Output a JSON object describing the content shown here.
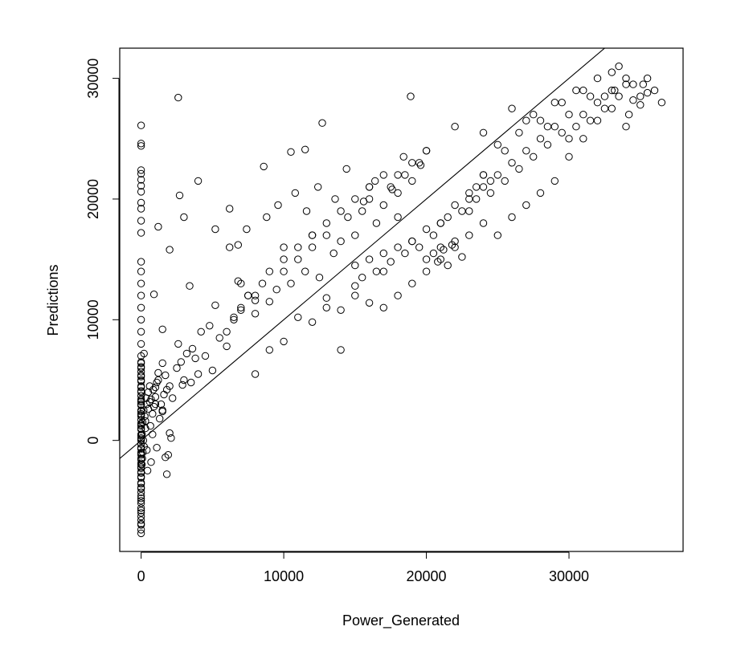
{
  "chart_data": {
    "type": "scatter",
    "title": "",
    "xlabel": "Power_Generated",
    "ylabel": "Predictions",
    "xlim": [
      -1500,
      38000
    ],
    "ylim": [
      -9200,
      32500
    ],
    "x_ticks": [
      0,
      10000,
      20000,
      30000
    ],
    "x_tick_labels": [
      "0",
      "10000",
      "20000",
      "30000"
    ],
    "y_ticks": [
      0,
      10000,
      20000,
      30000
    ],
    "y_tick_labels": [
      "0",
      "10000",
      "20000",
      "30000"
    ],
    "grid": false,
    "legend": "none",
    "marker": "open-circle",
    "reference_line": {
      "slope": 1,
      "intercept": 0
    },
    "colors": {
      "points": "#000000",
      "line": "#000000",
      "background": "#ffffff"
    },
    "series": [
      {
        "x": [
          0,
          0,
          0,
          0,
          0,
          0,
          0,
          0,
          0,
          0,
          0,
          0,
          0,
          0,
          0,
          0,
          0,
          0,
          0,
          0,
          0,
          0,
          0,
          0,
          0,
          0,
          0,
          0,
          0,
          0,
          0,
          0,
          0,
          0,
          0,
          0,
          0,
          0,
          0,
          0,
          0,
          0,
          0,
          0,
          0,
          0,
          0,
          0,
          0,
          0,
          0,
          0,
          0,
          0,
          0,
          0,
          0,
          0,
          0,
          0,
          0,
          0,
          0,
          0,
          0,
          0,
          0,
          0,
          0,
          0,
          0,
          0,
          0,
          0,
          0,
          0,
          0,
          0,
          0,
          0,
          0,
          0,
          0,
          0,
          0,
          0,
          0,
          0,
          0,
          0,
          50,
          80,
          120,
          200,
          150,
          60,
          300,
          100,
          250,
          180,
          400,
          350,
          500,
          600,
          450,
          700,
          800,
          650,
          900,
          1000,
          850,
          1200,
          1100,
          1300,
          1500,
          1400,
          1600,
          1800,
          1700,
          2000,
          1900,
          2100,
          300,
          500,
          700,
          1000,
          1200,
          1500,
          200,
          400,
          800,
          600,
          1100,
          1700,
          1000,
          2000,
          3000,
          2500,
          3500,
          4000,
          1500,
          2200,
          2800,
          4500,
          5000,
          3200,
          1800,
          2600,
          3800,
          4200,
          5500,
          6000,
          4800,
          6500,
          7000,
          5200,
          7500,
          8000,
          6800,
          2900,
          3600,
          2600,
          2700,
          1200,
          900,
          1500,
          2000,
          3000,
          3400,
          4000,
          5200,
          6200,
          6800,
          8600,
          10500,
          11500,
          12700,
          18900,
          6000,
          6500,
          7000,
          7500,
          8000,
          8500,
          9000,
          9500,
          10000,
          10500,
          11000,
          11500,
          12000,
          12500,
          13000,
          13500,
          14000,
          14500,
          15000,
          15500,
          16000,
          16500,
          17000,
          17500,
          18000,
          18500,
          19000,
          19500,
          7000,
          8000,
          9000,
          10000,
          11000,
          12000,
          13000,
          14000,
          15000,
          16000,
          17000,
          18000,
          19000,
          20000,
          6200,
          7400,
          8800,
          9600,
          10800,
          11600,
          12400,
          13600,
          14400,
          15600,
          16400,
          17600,
          18400,
          19600,
          11000,
          12000,
          13000,
          14000,
          15000,
          16000,
          9000,
          10000,
          8000,
          17000,
          18000,
          19000,
          20000,
          21000,
          22000,
          23000,
          24000,
          20000,
          20500,
          21000,
          21500,
          22000,
          22500,
          20800,
          21200,
          21800,
          15000,
          15500,
          16000,
          16500,
          17000,
          17500,
          18000,
          18500,
          19000,
          19500,
          20000,
          20500,
          21000,
          21500,
          22000,
          22500,
          23000,
          23500,
          24000,
          24500,
          23000,
          23500,
          24000,
          24500,
          25000,
          25500,
          26000,
          26500,
          27000,
          27500,
          28000,
          28500,
          29000,
          29500,
          30000,
          25000,
          26000,
          27000,
          28000,
          29000,
          30000,
          31000,
          32000,
          24000,
          25500,
          26500,
          27500,
          28500,
          29500,
          30500,
          31500,
          30000,
          30500,
          31000,
          31500,
          32000,
          32500,
          33000,
          33500,
          34000,
          34500,
          35000,
          35500,
          36000,
          36500,
          33000,
          33500,
          34000,
          34500,
          35000,
          35500,
          31000,
          32000,
          33000,
          34000,
          32500,
          33200,
          34200,
          35200,
          14000,
          22000,
          24000,
          26000,
          28000,
          20000,
          18000,
          16000,
          12000,
          10000,
          25000,
          27000,
          29000,
          23000,
          21000,
          19000,
          17000,
          15000,
          13000
        ],
        "y": [
          -7700,
          -7400,
          -6900,
          -6300,
          -5800,
          -5200,
          -4800,
          -4300,
          -3900,
          -3500,
          -3100,
          -2700,
          -2300,
          -1900,
          -1500,
          -1100,
          -700,
          -300,
          100,
          500,
          900,
          1300,
          1700,
          2100,
          2500,
          2900,
          3300,
          3700,
          4100,
          4500,
          4900,
          5300,
          5700,
          6100,
          6500,
          -7000,
          -6000,
          -5000,
          -4000,
          -3000,
          -2000,
          -1000,
          0,
          1000,
          2000,
          3000,
          4000,
          5000,
          6000,
          7000,
          8000,
          9000,
          10000,
          11000,
          12000,
          13000,
          14000,
          14800,
          17200,
          18200,
          19200,
          19700,
          20600,
          21100,
          21600,
          22100,
          22400,
          24400,
          24600,
          26100,
          -6600,
          -5600,
          -4600,
          -3600,
          -2600,
          -1600,
          -600,
          400,
          1400,
          2400,
          3400,
          4400,
          5400,
          6400,
          -2200,
          -1200,
          200,
          1200,
          2200,
          3200,
          -2000,
          -1500,
          -1000,
          -500,
          0,
          500,
          1000,
          1500,
          2000,
          2500,
          3000,
          3500,
          4000,
          4500,
          -2500,
          -1800,
          500,
          1200,
          2800,
          3600,
          4200,
          5000,
          -600,
          1800,
          2400,
          3000,
          3800,
          -2800,
          -1400,
          600,
          -1200,
          200,
          1600,
          2600,
          3400,
          4400,
          5600,
          6400,
          7200,
          -800,
          2200,
          3200,
          4800,
          5400,
          3000,
          4500,
          5000,
          6000,
          4800,
          5500,
          2500,
          3500,
          6500,
          7000,
          5800,
          7200,
          4200,
          8000,
          6800,
          9000,
          8500,
          7800,
          9500,
          10200,
          10800,
          11200,
          12000,
          11600,
          13200,
          4600,
          7600,
          28400,
          20300,
          17700,
          12100,
          9200,
          15800,
          18500,
          12800,
          21500,
          17500,
          19200,
          16200,
          22700,
          23900,
          24100,
          26300,
          28500,
          9000,
          10000,
          11000,
          12000,
          10500,
          13000,
          11500,
          12500,
          14000,
          13000,
          15000,
          14000,
          16000,
          13500,
          17000,
          15500,
          16500,
          18500,
          17000,
          19000,
          20000,
          18000,
          19500,
          21000,
          20500,
          22000,
          21500,
          23000,
          13000,
          12000,
          14000,
          15000,
          16000,
          17000,
          18000,
          19000,
          20000,
          21000,
          22000,
          18500,
          23000,
          24000,
          16000,
          17500,
          18500,
          19500,
          20500,
          19000,
          21000,
          20000,
          22500,
          19800,
          21500,
          20800,
          23500,
          22800,
          10200,
          9800,
          11800,
          10800,
          12800,
          11400,
          7500,
          8200,
          5500,
          11000,
          12000,
          13000,
          14000,
          15000,
          16000,
          17000,
          18000,
          15000,
          15500,
          16000,
          14500,
          16500,
          15200,
          14800,
          15800,
          16200,
          14500,
          13500,
          15000,
          14000,
          15500,
          14800,
          16000,
          15500,
          16500,
          16000,
          17500,
          17000,
          18000,
          18500,
          19500,
          19000,
          20500,
          21000,
          22000,
          21500,
          19000,
          20000,
          21000,
          20500,
          22000,
          21500,
          23000,
          22500,
          24000,
          23500,
          25000,
          24500,
          26000,
          25500,
          27000,
          17000,
          18500,
          19500,
          20500,
          21500,
          23500,
          25000,
          26500,
          22000,
          24000,
          25500,
          27000,
          26000,
          28000,
          29000,
          28500,
          25000,
          26000,
          27000,
          26500,
          28000,
          27500,
          29000,
          28500,
          29500,
          28200,
          27800,
          28800,
          29000,
          28000,
          30500,
          31000,
          30000,
          29500,
          28500,
          30000,
          29000,
          30000,
          27500,
          26000,
          28500,
          29000,
          27000,
          29500,
          7500,
          26000,
          25500,
          27500,
          26500,
          24000,
          22000,
          21000,
          17000,
          16000,
          24500,
          26500,
          28000,
          20000,
          18000,
          16500,
          14000,
          12000,
          11000
        ]
      }
    ]
  }
}
